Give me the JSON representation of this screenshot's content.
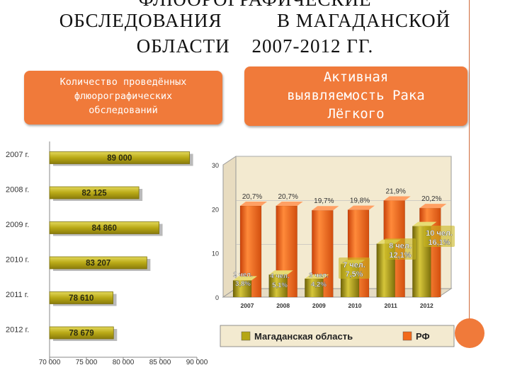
{
  "slide": {
    "title_line0": "ФЛЮОРОГРАФИЧЕСКИЕ",
    "title_line1": "ОБСЛЕДОВАНИЯ          В МАГАДАНСКОЙ",
    "title_line2": "ОБЛАСТИ    2007-2012 ГГ.",
    "left_box": [
      "Количество проведённых",
      "флюорографических",
      "обследований"
    ],
    "right_box": [
      "Активная",
      "выявляемость Рака",
      "Лёгкого"
    ]
  },
  "colors": {
    "accent": "#f07a3a",
    "olive": "#b5a614",
    "orange": "#f26a1b",
    "bg3d": "#f3ead0"
  },
  "chart_data": [
    {
      "type": "bar",
      "orientation": "horizontal",
      "categories": [
        "2007 г.",
        "2008 г.",
        "2009 г.",
        "2010 г.",
        "2011 г.",
        "2012 г."
      ],
      "values": [
        89000,
        82125,
        84860,
        83207,
        78610,
        78679
      ],
      "value_labels": [
        "89 000",
        "82 125",
        "84 860",
        "83 207",
        "78 610",
        "78 679"
      ],
      "xlim": [
        70000,
        90000
      ],
      "xticks": [
        "70 000",
        "75 000",
        "80 000",
        "85 000",
        "90 000"
      ],
      "xtick_values": [
        70000,
        75000,
        80000,
        85000,
        90000
      ]
    },
    {
      "type": "bar",
      "categories": [
        "2007",
        "2008",
        "2009",
        "2010",
        "2011",
        "2012"
      ],
      "ylim": [
        0,
        30
      ],
      "yticks": [
        "0",
        "10",
        "20",
        "30"
      ],
      "ytick_values": [
        0,
        10,
        20,
        30
      ],
      "legend": [
        "Магаданская область",
        "РФ"
      ],
      "series": [
        {
          "name": "Магаданская область",
          "values": [
            3.8,
            5.1,
            4.2,
            7.5,
            12.1,
            16.1
          ],
          "labels": [
            [
              "2 чел.",
              "3,8%"
            ],
            [
              "4 чел.",
              "5,1%"
            ],
            [
              "3 чел.",
              "4,2%"
            ],
            [
              "7 чел.",
              "7,5%"
            ],
            [
              "8 чел.",
              "12,1%"
            ],
            [
              "10 чел.",
              "16,1%"
            ]
          ]
        },
        {
          "name": "РФ",
          "values": [
            20.7,
            20.7,
            19.7,
            19.8,
            21.9,
            20.2
          ],
          "labels": [
            "20,7%",
            "20,7%",
            "19,7%",
            "19,8%",
            "21,9%",
            "20,2%"
          ]
        }
      ]
    }
  ]
}
